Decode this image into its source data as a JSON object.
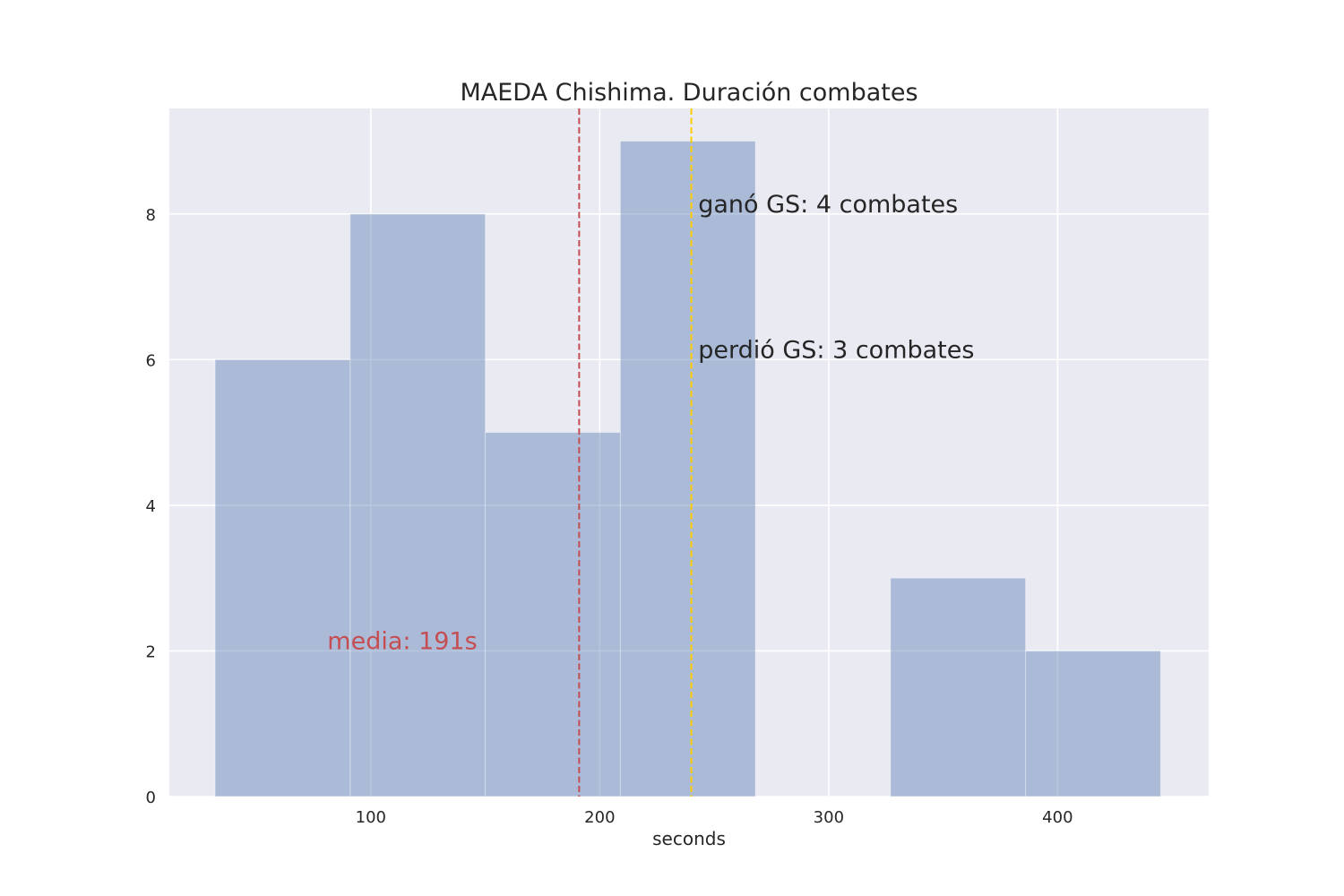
{
  "chart_data": {
    "type": "bar",
    "title": "MAEDA Chishima. Duración combates",
    "xlabel": "seconds",
    "ylabel": "",
    "xlim": [
      12,
      466
    ],
    "ylim": [
      0,
      9.45
    ],
    "xticks": [
      100,
      200,
      300,
      400
    ],
    "yticks": [
      0,
      2,
      4,
      6,
      8
    ],
    "grid": true,
    "bins": [
      {
        "x0": 32,
        "x1": 91,
        "count": 6
      },
      {
        "x0": 91,
        "x1": 150,
        "count": 8
      },
      {
        "x0": 150,
        "x1": 209,
        "count": 5
      },
      {
        "x0": 209,
        "x1": 268,
        "count": 9
      },
      {
        "x0": 268,
        "x1": 327,
        "count": 0
      },
      {
        "x0": 327,
        "x1": 386,
        "count": 3
      },
      {
        "x0": 386,
        "x1": 445,
        "count": 2
      }
    ],
    "bar_color": "#4c72b0",
    "vlines": [
      {
        "x": 191,
        "color": "#c44e52",
        "style": "dashed"
      },
      {
        "x": 240,
        "color": "#ffcc00",
        "style": "dashed"
      }
    ],
    "annotations": [
      {
        "text": "media: 191s",
        "x": 81,
        "y": 2,
        "color": "#c44e52"
      },
      {
        "text": "ganó GS: 4 combates",
        "x": 243,
        "y": 8,
        "color": "#262626"
      },
      {
        "text": "perdió GS: 3 combates",
        "x": 243,
        "y": 6,
        "color": "#262626"
      }
    ]
  }
}
